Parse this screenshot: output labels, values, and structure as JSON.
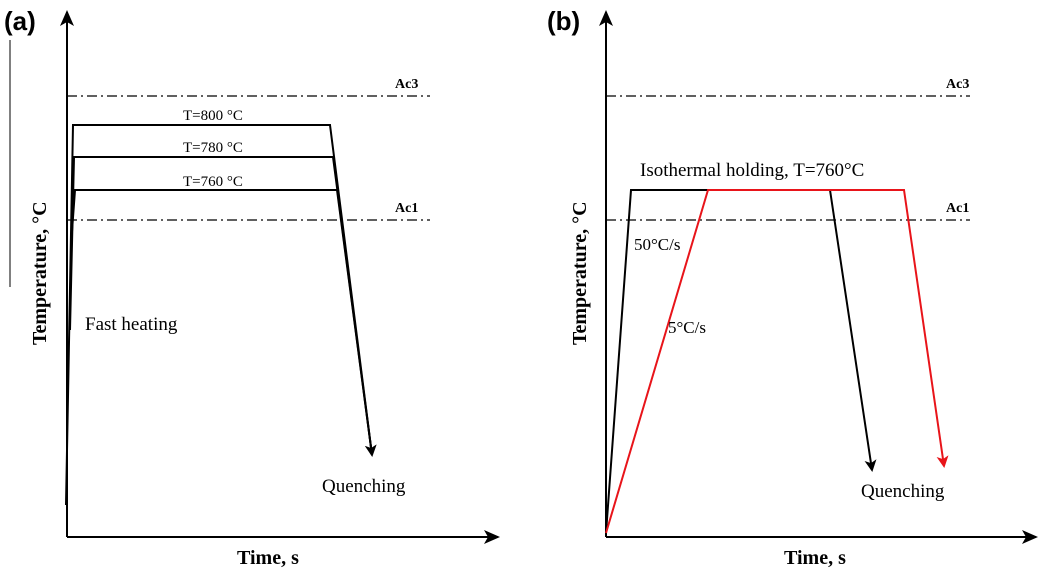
{
  "panels": [
    {
      "label": "(a)",
      "xlabel": "Time, s",
      "ylabel": "Temperature, °C",
      "ref_lines": [
        "Ac3",
        "Ac1"
      ],
      "temperature_labels": [
        "T=800 °C",
        "T=780 °C",
        "T=760 °C"
      ],
      "note_heating": "Fast heating",
      "note_quenching": "Quenching"
    },
    {
      "label": "(b)",
      "xlabel": "Time, s",
      "ylabel": "Temperature, °C",
      "ref_lines": [
        "Ac3",
        "Ac1"
      ],
      "holding_label": "Isothermal holding, T=760°C",
      "rate_fast": "50°C/s",
      "rate_slow": "5°C/s",
      "note_quenching": "Quenching"
    }
  ],
  "colors": {
    "fast_path": "#000000",
    "slow_path": "#e8141a"
  }
}
